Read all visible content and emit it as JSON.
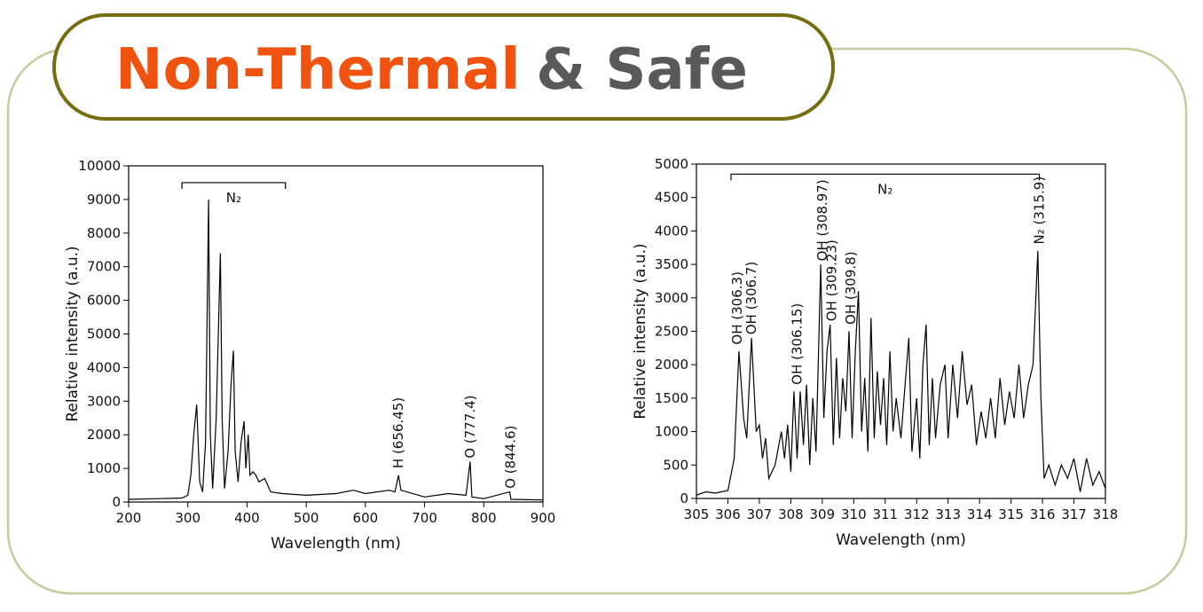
{
  "header": {
    "title_highlight": "Non-Thermal",
    "title_rest": "& Safe"
  },
  "chart_data": [
    {
      "type": "line",
      "xlabel": "Wavelength (nm)",
      "ylabel": "Relative intensity (a.u.)",
      "xlim": [
        200,
        900
      ],
      "xticks": [
        200,
        300,
        400,
        500,
        600,
        700,
        800,
        900
      ],
      "ylim": [
        0,
        10000
      ],
      "yticks": [
        0,
        1000,
        2000,
        3000,
        4000,
        5000,
        6000,
        7000,
        8000,
        9000,
        10000
      ],
      "color": "#000000",
      "x": [
        200,
        250,
        290,
        300,
        305,
        310,
        315,
        320,
        325,
        330,
        335,
        338,
        342,
        348,
        355,
        358,
        362,
        368,
        373,
        377,
        380,
        385,
        390,
        395,
        398,
        402,
        405,
        410,
        415,
        420,
        430,
        440,
        460,
        500,
        550,
        580,
        600,
        640,
        650,
        656,
        660,
        700,
        740,
        770,
        777,
        780,
        800,
        844,
        846,
        900
      ],
      "values": [
        80,
        100,
        120,
        200,
        800,
        2000,
        2900,
        600,
        300,
        1800,
        9000,
        2000,
        400,
        2500,
        7400,
        2500,
        400,
        1500,
        3500,
        4500,
        1500,
        600,
        1800,
        2400,
        1000,
        2000,
        800,
        900,
        800,
        600,
        700,
        300,
        250,
        200,
        250,
        350,
        250,
        350,
        300,
        800,
        350,
        150,
        250,
        200,
        1200,
        150,
        100,
        300,
        80,
        60
      ],
      "bracket": {
        "text": "N₂",
        "x0": 290,
        "x1": 465,
        "y": 9500
      },
      "annotations": [
        {
          "text": "H (656.45)",
          "x": 656,
          "y": 1000
        },
        {
          "text": "O (777.4)",
          "x": 777,
          "y": 1300
        },
        {
          "text": "O (844.6)",
          "x": 845,
          "y": 400
        }
      ]
    },
    {
      "type": "line",
      "xlabel": "Wavelength (nm)",
      "ylabel": "Relative intensity (a.u.)",
      "xlim": [
        305,
        318
      ],
      "xticks": [
        305,
        306,
        307,
        308,
        309,
        310,
        311,
        312,
        313,
        314,
        315,
        316,
        317,
        318
      ],
      "ylim": [
        0,
        5000
      ],
      "yticks": [
        0,
        500,
        1000,
        1500,
        2000,
        2500,
        3000,
        3500,
        4000,
        4500,
        5000
      ],
      "color": "#000000",
      "x": [
        305,
        305.3,
        305.6,
        306,
        306.2,
        306.35,
        306.5,
        306.6,
        306.75,
        306.9,
        307,
        307.1,
        307.2,
        307.3,
        307.5,
        307.7,
        307.8,
        307.9,
        308,
        308.1,
        308.2,
        308.3,
        308.4,
        308.5,
        308.6,
        308.7,
        308.8,
        308.95,
        309.05,
        309.15,
        309.25,
        309.35,
        309.45,
        309.55,
        309.65,
        309.75,
        309.85,
        309.95,
        310.05,
        310.15,
        310.25,
        310.35,
        310.45,
        310.55,
        310.65,
        310.75,
        310.85,
        310.95,
        311.05,
        311.15,
        311.25,
        311.35,
        311.5,
        311.65,
        311.75,
        311.85,
        312,
        312.1,
        312.2,
        312.3,
        312.4,
        312.5,
        312.6,
        312.75,
        312.9,
        313,
        313.15,
        313.3,
        313.45,
        313.6,
        313.75,
        313.9,
        314.05,
        314.2,
        314.35,
        314.5,
        314.65,
        314.8,
        314.95,
        315.1,
        315.25,
        315.4,
        315.55,
        315.7,
        315.85,
        315.95,
        316.05,
        316.2,
        316.4,
        316.6,
        316.8,
        317,
        317.2,
        317.4,
        317.6,
        317.8,
        318
      ],
      "values": [
        50,
        100,
        80,
        120,
        600,
        2200,
        1200,
        900,
        2400,
        1000,
        1100,
        600,
        900,
        300,
        500,
        1000,
        600,
        1100,
        400,
        1600,
        600,
        1600,
        800,
        1700,
        500,
        1500,
        700,
        3500,
        1200,
        2200,
        2600,
        800,
        2100,
        900,
        1800,
        1300,
        2500,
        900,
        2200,
        3100,
        1000,
        1800,
        700,
        2700,
        900,
        1900,
        1100,
        1800,
        800,
        2200,
        1000,
        1500,
        900,
        1800,
        2400,
        700,
        1500,
        600,
        2000,
        2600,
        800,
        1800,
        900,
        1700,
        2000,
        900,
        2000,
        1200,
        2200,
        1400,
        1700,
        800,
        1300,
        900,
        1500,
        900,
        1800,
        1100,
        1600,
        1200,
        2000,
        1200,
        1700,
        2000,
        3700,
        1500,
        300,
        500,
        200,
        500,
        300,
        600,
        100,
        600,
        200,
        400,
        150
      ],
      "bracket": {
        "text": "N₂",
        "x0": 306.1,
        "x1": 315.9,
        "y": 4850
      },
      "annotations": [
        {
          "text": "OH (306.3)",
          "x": 306.3,
          "y": 2300
        },
        {
          "text": "OH (306.7)",
          "x": 306.75,
          "y": 2450
        },
        {
          "text": "OH (306.15)",
          "x": 308.2,
          "y": 1700
        },
        {
          "text": "OH (308.97)",
          "x": 309.0,
          "y": 3550
        },
        {
          "text": "OH (309.23)",
          "x": 309.3,
          "y": 2650
        },
        {
          "text": "OH (309.8)",
          "x": 309.9,
          "y": 2600
        },
        {
          "text": "N₂ (315.9)",
          "x": 315.9,
          "y": 3800
        }
      ]
    }
  ]
}
